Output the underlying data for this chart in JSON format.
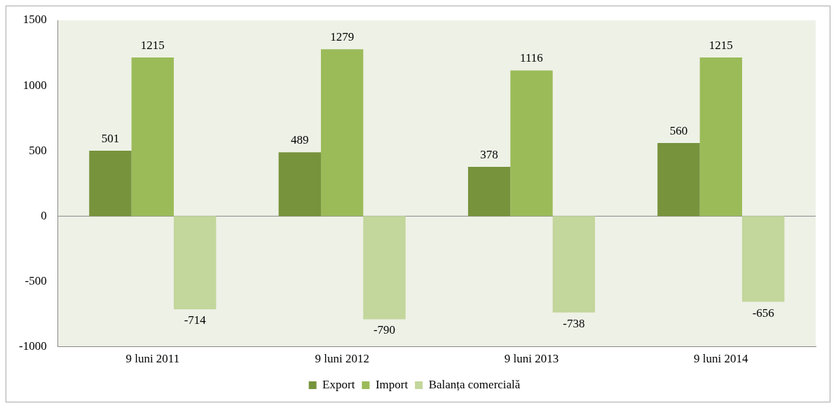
{
  "chart_data": {
    "type": "bar",
    "categories": [
      "9 luni 2011",
      "9 luni 2012",
      "9 luni 2013",
      "9 luni 2014"
    ],
    "series": [
      {
        "name": "Export",
        "color": "#77933c",
        "values": [
          501,
          489,
          378,
          560
        ]
      },
      {
        "name": "Import",
        "color": "#9bbb59",
        "values": [
          1215,
          1279,
          1116,
          1215
        ]
      },
      {
        "name": "Balanța comercială",
        "color": "#c3d69b",
        "values": [
          -714,
          -790,
          -738,
          -656
        ]
      }
    ],
    "ylim": [
      -1000,
      1500
    ],
    "yticks": [
      -1000,
      -500,
      0,
      500,
      1000,
      1500
    ],
    "grid": false,
    "ref_lines": [
      {
        "axis": "y",
        "value": 0,
        "color": "#888888"
      }
    ],
    "legend": "bottom",
    "data_labels": true
  }
}
